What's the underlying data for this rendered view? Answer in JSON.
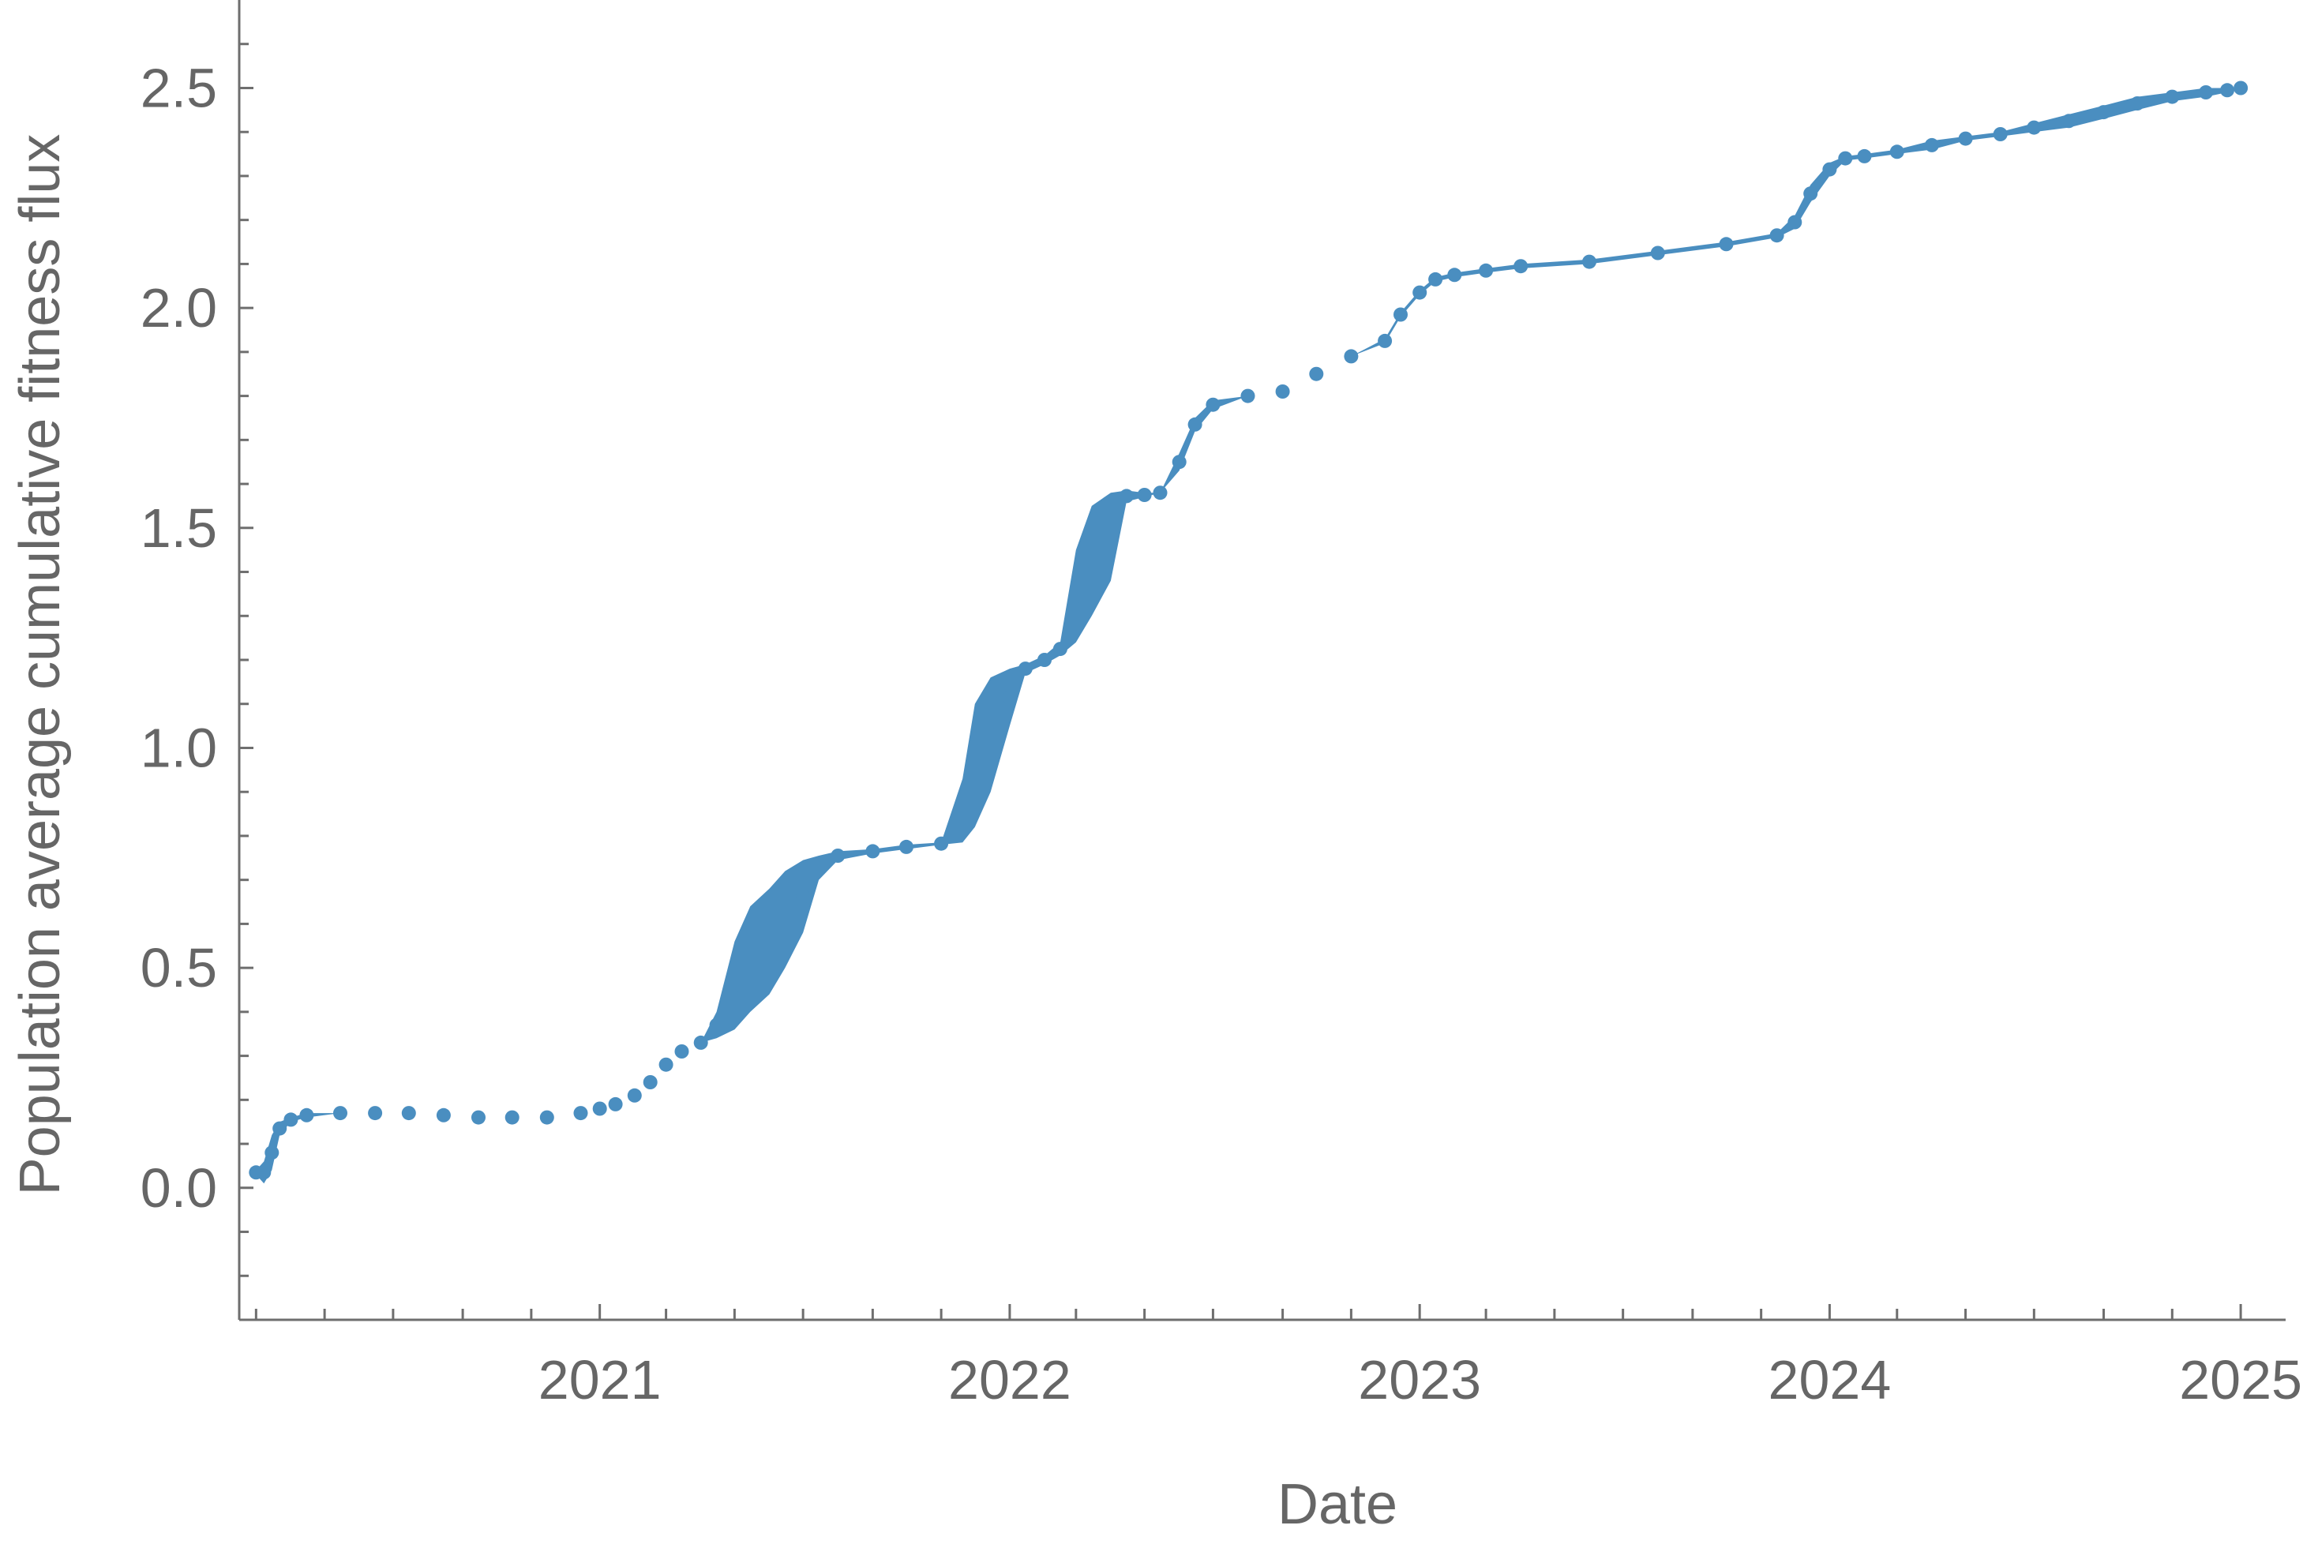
{
  "chart_data": {
    "type": "line",
    "title": "",
    "xlabel": "Date",
    "ylabel": "Population average cumulative fitness flux",
    "x_type": "date",
    "xlim": [
      "2020-02-15",
      "2025-02-10"
    ],
    "ylim": [
      -0.3,
      2.7
    ],
    "x_tick_labels": [
      "2021",
      "2022",
      "2023",
      "2024",
      "2025"
    ],
    "y_tick_labels": [
      "0.0",
      "0.5",
      "1.0",
      "1.5",
      "2.0",
      "2.5"
    ],
    "grid": false,
    "legend": "none",
    "series": [
      {
        "color": "#4a8ec0",
        "x": [
          "2020-03-01",
          "2020-03-08",
          "2020-03-15",
          "2020-03-22",
          "2020-04-01",
          "2020-04-15",
          "2020-05-15",
          "2020-06-15",
          "2020-07-15",
          "2020-08-15",
          "2020-09-15",
          "2020-10-15",
          "2020-11-15",
          "2020-12-15",
          "2021-01-01",
          "2021-01-15",
          "2021-02-01",
          "2021-02-15",
          "2021-03-01",
          "2021-03-15",
          "2021-04-01",
          "2021-04-15",
          "2021-05-01",
          "2021-05-15",
          "2021-06-01",
          "2021-06-15",
          "2021-07-01",
          "2021-07-15",
          "2021-08-01",
          "2021-09-01",
          "2021-10-01",
          "2021-11-01",
          "2021-11-20",
          "2021-12-01",
          "2021-12-15",
          "2022-01-01",
          "2022-01-15",
          "2022-02-01",
          "2022-02-15",
          "2022-03-01",
          "2022-03-15",
          "2022-04-01",
          "2022-04-15",
          "2022-05-01",
          "2022-05-15",
          "2022-06-01",
          "2022-06-15",
          "2022-07-01",
          "2022-08-01",
          "2022-09-01",
          "2022-10-01",
          "2022-11-01",
          "2022-12-01",
          "2022-12-15",
          "2023-01-01",
          "2023-01-15",
          "2023-02-01",
          "2023-03-01",
          "2023-04-01",
          "2023-06-01",
          "2023-08-01",
          "2023-10-01",
          "2023-11-15",
          "2023-12-01",
          "2023-12-15",
          "2024-01-01",
          "2024-01-15",
          "2024-02-01",
          "2024-03-01",
          "2024-04-01",
          "2024-05-01",
          "2024-06-01",
          "2024-07-01",
          "2024-08-01",
          "2024-09-01",
          "2024-10-01",
          "2024-11-01",
          "2024-12-01",
          "2024-12-20",
          "2025-01-01"
        ],
        "y_low": [
          0.03,
          0.01,
          0.04,
          0.12,
          0.15,
          0.16,
          0.17,
          0.17,
          0.17,
          0.165,
          0.16,
          0.16,
          0.16,
          0.17,
          0.18,
          0.19,
          0.21,
          0.24,
          0.28,
          0.31,
          0.33,
          0.34,
          0.36,
          0.4,
          0.44,
          0.5,
          0.58,
          0.7,
          0.745,
          0.76,
          0.77,
          0.78,
          0.785,
          0.82,
          0.9,
          1.05,
          1.17,
          1.19,
          1.21,
          1.24,
          1.3,
          1.38,
          1.56,
          1.57,
          1.58,
          1.63,
          1.72,
          1.77,
          1.8,
          1.81,
          1.85,
          1.89,
          1.92,
          1.98,
          2.03,
          2.06,
          2.07,
          2.08,
          2.09,
          2.1,
          2.12,
          2.14,
          2.16,
          2.18,
          2.24,
          2.3,
          2.335,
          2.34,
          2.35,
          2.36,
          2.38,
          2.39,
          2.4,
          2.41,
          2.43,
          2.45,
          2.47,
          2.48,
          2.49,
          2.5
        ],
        "y_high": [
          0.04,
          0.06,
          0.12,
          0.15,
          0.16,
          0.17,
          0.17,
          0.17,
          0.17,
          0.165,
          0.16,
          0.16,
          0.16,
          0.17,
          0.18,
          0.19,
          0.21,
          0.24,
          0.28,
          0.31,
          0.33,
          0.4,
          0.56,
          0.64,
          0.68,
          0.72,
          0.745,
          0.755,
          0.765,
          0.77,
          0.78,
          0.785,
          0.93,
          1.1,
          1.16,
          1.18,
          1.19,
          1.21,
          1.24,
          1.45,
          1.55,
          1.58,
          1.585,
          1.58,
          1.58,
          1.67,
          1.75,
          1.79,
          1.8,
          1.81,
          1.85,
          1.89,
          1.93,
          1.99,
          2.04,
          2.07,
          2.08,
          2.09,
          2.1,
          2.11,
          2.13,
          2.15,
          2.17,
          2.21,
          2.28,
          2.33,
          2.345,
          2.35,
          2.36,
          2.38,
          2.39,
          2.4,
          2.42,
          2.44,
          2.46,
          2.48,
          2.49,
          2.5,
          2.5,
          2.5
        ]
      }
    ]
  }
}
